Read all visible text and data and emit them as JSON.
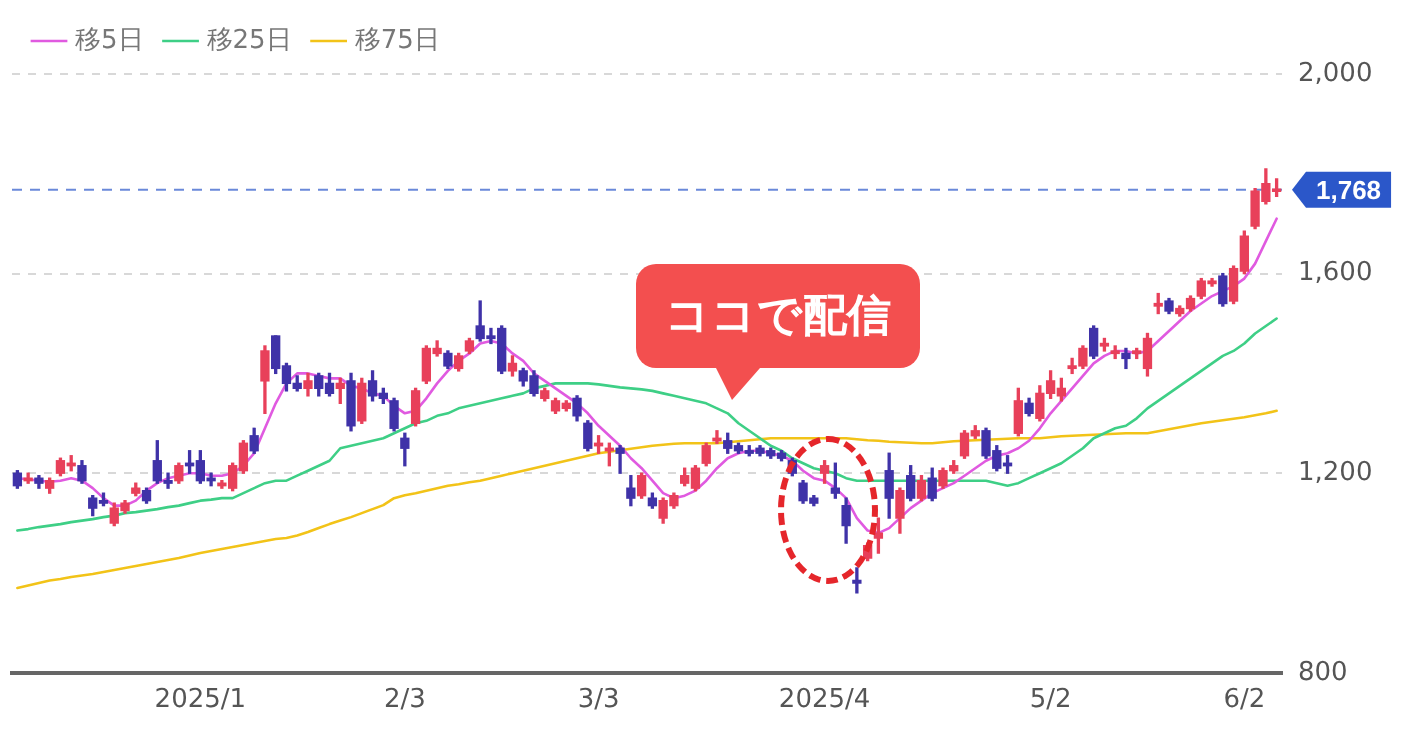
{
  "chart_data": {
    "type": "candlestick",
    "categories": [
      null,
      null,
      null,
      null,
      null,
      null,
      null,
      null,
      null,
      null,
      null,
      null,
      null,
      null,
      null,
      null,
      null,
      "2025/1",
      null,
      null,
      null,
      null,
      null,
      null,
      null,
      null,
      null,
      null,
      null,
      null,
      null,
      null,
      null,
      null,
      null,
      null,
      "2/3",
      null,
      null,
      null,
      null,
      null,
      null,
      null,
      null,
      null,
      null,
      null,
      null,
      null,
      null,
      null,
      null,
      null,
      "3/3",
      null,
      null,
      null,
      null,
      null,
      null,
      null,
      null,
      null,
      null,
      null,
      null,
      null,
      null,
      null,
      null,
      null,
      null,
      null,
      null,
      "2025/4",
      null,
      null,
      null,
      null,
      null,
      null,
      null,
      null,
      null,
      null,
      null,
      null,
      null,
      null,
      null,
      null,
      null,
      null,
      null,
      null,
      "5/2",
      null,
      null,
      null,
      null,
      null,
      null,
      null,
      null,
      null,
      null,
      null,
      null,
      null,
      null,
      null,
      null,
      null,
      "6/2",
      null,
      null,
      null
    ],
    "ohlc": [
      [
        1200,
        1205,
        1170,
        1175
      ],
      [
        1185,
        1200,
        1180,
        1190
      ],
      [
        1190,
        1195,
        1170,
        1180
      ],
      [
        1170,
        1190,
        1160,
        1185
      ],
      [
        1200,
        1230,
        1195,
        1225
      ],
      [
        1215,
        1235,
        1205,
        1220
      ],
      [
        1215,
        1225,
        1180,
        1185
      ],
      [
        1150,
        1155,
        1115,
        1130
      ],
      [
        1145,
        1160,
        1135,
        1140
      ],
      [
        1100,
        1140,
        1095,
        1130
      ],
      [
        1125,
        1145,
        1120,
        1140
      ],
      [
        1160,
        1180,
        1155,
        1170
      ],
      [
        1165,
        1170,
        1140,
        1145
      ],
      [
        1225,
        1265,
        1180,
        1185
      ],
      [
        1185,
        1200,
        1170,
        1180
      ],
      [
        1185,
        1220,
        1180,
        1215
      ],
      [
        1220,
        1245,
        1200,
        1215
      ],
      [
        1225,
        1245,
        1180,
        1185
      ],
      [
        1190,
        1200,
        1175,
        1185
      ],
      [
        1175,
        1185,
        1170,
        1180
      ],
      [
        1170,
        1220,
        1165,
        1215
      ],
      [
        1205,
        1265,
        1200,
        1260
      ],
      [
        1275,
        1290,
        1240,
        1245
      ],
      [
        1385,
        1455,
        1320,
        1445
      ],
      [
        1475,
        1475,
        1400,
        1410
      ],
      [
        1415,
        1420,
        1365,
        1380
      ],
      [
        1380,
        1395,
        1365,
        1370
      ],
      [
        1370,
        1400,
        1355,
        1385
      ],
      [
        1395,
        1400,
        1355,
        1370
      ],
      [
        1380,
        1400,
        1355,
        1360
      ],
      [
        1370,
        1390,
        1340,
        1380
      ],
      [
        1385,
        1400,
        1285,
        1295
      ],
      [
        1305,
        1390,
        1300,
        1380
      ],
      [
        1385,
        1405,
        1345,
        1355
      ],
      [
        1360,
        1370,
        1340,
        1350
      ],
      [
        1345,
        1350,
        1285,
        1290
      ],
      [
        1270,
        1280,
        1215,
        1250
      ],
      [
        1300,
        1370,
        1295,
        1365
      ],
      [
        1385,
        1455,
        1380,
        1450
      ],
      [
        1440,
        1465,
        1435,
        1450
      ],
      [
        1440,
        1445,
        1410,
        1415
      ],
      [
        1410,
        1440,
        1405,
        1435
      ],
      [
        1445,
        1470,
        1440,
        1465
      ],
      [
        1495,
        1545,
        1465,
        1470
      ],
      [
        1475,
        1490,
        1460,
        1470
      ],
      [
        1490,
        1495,
        1400,
        1405
      ],
      [
        1405,
        1435,
        1395,
        1420
      ],
      [
        1405,
        1410,
        1375,
        1385
      ],
      [
        1395,
        1405,
        1355,
        1360
      ],
      [
        1350,
        1370,
        1345,
        1365
      ],
      [
        1325,
        1350,
        1320,
        1345
      ],
      [
        1330,
        1345,
        1325,
        1340
      ],
      [
        1350,
        1355,
        1305,
        1315
      ],
      [
        1300,
        1305,
        1245,
        1250
      ],
      [
        1255,
        1275,
        1240,
        1260
      ],
      [
        1245,
        1260,
        1215,
        1250
      ],
      [
        1250,
        1255,
        1200,
        1240
      ],
      [
        1170,
        1195,
        1135,
        1150
      ],
      [
        1155,
        1200,
        1150,
        1195
      ],
      [
        1150,
        1160,
        1130,
        1135
      ],
      [
        1110,
        1150,
        1100,
        1145
      ],
      [
        1135,
        1160,
        1130,
        1155
      ],
      [
        1180,
        1210,
        1175,
        1195
      ],
      [
        1170,
        1215,
        1165,
        1210
      ],
      [
        1220,
        1260,
        1215,
        1255
      ],
      [
        1265,
        1285,
        1260,
        1270
      ],
      [
        1265,
        1280,
        1240,
        1250
      ],
      [
        1255,
        1260,
        1240,
        1245
      ],
      [
        1245,
        1255,
        1235,
        1240
      ],
      [
        1250,
        1255,
        1235,
        1240
      ],
      [
        1245,
        1250,
        1230,
        1235
      ],
      [
        1240,
        1245,
        1225,
        1230
      ],
      [
        1225,
        1230,
        1195,
        1200
      ],
      [
        1180,
        1185,
        1140,
        1145
      ],
      [
        1150,
        1155,
        1135,
        1140
      ],
      [
        1200,
        1225,
        1180,
        1215
      ],
      [
        1170,
        1220,
        1150,
        1160
      ],
      [
        1135,
        1150,
        1060,
        1095
      ],
      [
        985,
        1010,
        960,
        980
      ],
      [
        1030,
        1060,
        1025,
        1055
      ],
      [
        1070,
        1110,
        1040,
        1080
      ],
      [
        1205,
        1240,
        1110,
        1150
      ],
      [
        1110,
        1170,
        1080,
        1165
      ],
      [
        1195,
        1215,
        1145,
        1150
      ],
      [
        1150,
        1195,
        1145,
        1185
      ],
      [
        1190,
        1210,
        1145,
        1150
      ],
      [
        1175,
        1210,
        1170,
        1205
      ],
      [
        1205,
        1225,
        1200,
        1215
      ],
      [
        1235,
        1285,
        1230,
        1280
      ],
      [
        1275,
        1295,
        1270,
        1285
      ],
      [
        1285,
        1290,
        1230,
        1235
      ],
      [
        1245,
        1255,
        1205,
        1210
      ],
      [
        1220,
        1235,
        1200,
        1215
      ],
      [
        1280,
        1370,
        1275,
        1345
      ],
      [
        1340,
        1350,
        1315,
        1320
      ],
      [
        1310,
        1375,
        1305,
        1360
      ],
      [
        1360,
        1405,
        1350,
        1385
      ],
      [
        1355,
        1390,
        1345,
        1370
      ],
      [
        1410,
        1430,
        1400,
        1415
      ],
      [
        1415,
        1455,
        1410,
        1450
      ],
      [
        1490,
        1495,
        1430,
        1435
      ],
      [
        1455,
        1470,
        1445,
        1460
      ],
      [
        1440,
        1455,
        1430,
        1445
      ],
      [
        1440,
        1450,
        1410,
        1430
      ],
      [
        1440,
        1450,
        1430,
        1445
      ],
      [
        1410,
        1480,
        1395,
        1470
      ],
      [
        1535,
        1560,
        1520,
        1540
      ],
      [
        1545,
        1550,
        1520,
        1525
      ],
      [
        1520,
        1535,
        1515,
        1530
      ],
      [
        1530,
        1555,
        1525,
        1550
      ],
      [
        1555,
        1590,
        1550,
        1585
      ],
      [
        1580,
        1590,
        1575,
        1585
      ],
      [
        1595,
        1600,
        1535,
        1540
      ],
      [
        1545,
        1615,
        1540,
        1610
      ],
      [
        1605,
        1685,
        1600,
        1675
      ],
      [
        1695,
        1770,
        1690,
        1765
      ],
      [
        1745,
        1810,
        1740,
        1780
      ],
      [
        1765,
        1790,
        1755,
        1768
      ]
    ],
    "series": [
      {
        "type": "line",
        "name": "移5日",
        "color": "#e05ae0",
        "values": [
          1190,
          1188,
          1185,
          1183,
          1185,
          1190,
          1185,
          1170,
          1150,
          1135,
          1135,
          1145,
          1165,
          1180,
          1190,
          1195,
          1200,
          1200,
          1195,
          1195,
          1200,
          1215,
          1240,
          1290,
          1340,
          1380,
          1400,
          1400,
          1395,
          1390,
          1390,
          1375,
          1370,
          1360,
          1355,
          1335,
          1320,
          1325,
          1350,
          1380,
          1405,
          1425,
          1440,
          1460,
          1465,
          1460,
          1440,
          1425,
          1400,
          1385,
          1370,
          1355,
          1340,
          1320,
          1295,
          1275,
          1255,
          1230,
          1210,
          1185,
          1160,
          1150,
          1155,
          1165,
          1185,
          1210,
          1230,
          1240,
          1245,
          1245,
          1240,
          1235,
          1225,
          1205,
          1190,
          1185,
          1170,
          1150,
          1110,
          1085,
          1080,
          1090,
          1110,
          1130,
          1145,
          1160,
          1170,
          1180,
          1195,
          1210,
          1225,
          1235,
          1240,
          1250,
          1265,
          1290,
          1320,
          1345,
          1370,
          1395,
          1420,
          1435,
          1445,
          1445,
          1440,
          1445,
          1465,
          1485,
          1505,
          1525,
          1540,
          1555,
          1565,
          1575,
          1590,
          1620,
          1665,
          1710
        ]
      },
      {
        "type": "line",
        "name": "移25日",
        "color": "#3ecf86",
        "values": [
          1085,
          1088,
          1092,
          1095,
          1098,
          1102,
          1105,
          1108,
          1112,
          1115,
          1120,
          1122,
          1125,
          1128,
          1132,
          1135,
          1140,
          1145,
          1147,
          1150,
          1150,
          1160,
          1170,
          1180,
          1185,
          1185,
          1195,
          1205,
          1215,
          1225,
          1250,
          1255,
          1260,
          1265,
          1270,
          1280,
          1290,
          1300,
          1305,
          1315,
          1320,
          1330,
          1335,
          1340,
          1345,
          1350,
          1355,
          1360,
          1370,
          1375,
          1380,
          1380,
          1380,
          1380,
          1378,
          1375,
          1372,
          1370,
          1368,
          1365,
          1360,
          1355,
          1350,
          1345,
          1340,
          1330,
          1320,
          1300,
          1285,
          1270,
          1255,
          1245,
          1230,
          1220,
          1210,
          1205,
          1200,
          1190,
          1185,
          1185,
          1185,
          1185,
          1185,
          1185,
          1185,
          1185,
          1185,
          1185,
          1185,
          1185,
          1185,
          1180,
          1175,
          1180,
          1190,
          1200,
          1210,
          1220,
          1235,
          1250,
          1270,
          1280,
          1290,
          1295,
          1310,
          1330,
          1345,
          1360,
          1375,
          1390,
          1405,
          1420,
          1435,
          1445,
          1460,
          1480,
          1495,
          1510
        ]
      },
      {
        "type": "line",
        "name": "移75日",
        "color": "#f2c318",
        "values": [
          970,
          975,
          980,
          985,
          988,
          992,
          995,
          998,
          1002,
          1006,
          1010,
          1014,
          1018,
          1022,
          1026,
          1030,
          1035,
          1040,
          1044,
          1048,
          1052,
          1056,
          1060,
          1064,
          1068,
          1070,
          1075,
          1082,
          1090,
          1098,
          1105,
          1112,
          1120,
          1128,
          1136,
          1150,
          1156,
          1160,
          1165,
          1170,
          1175,
          1178,
          1182,
          1185,
          1190,
          1195,
          1200,
          1205,
          1210,
          1215,
          1220,
          1225,
          1230,
          1235,
          1240,
          1243,
          1246,
          1249,
          1252,
          1255,
          1257,
          1259,
          1260,
          1260,
          1260,
          1260,
          1262,
          1264,
          1266,
          1268,
          1270,
          1270,
          1270,
          1270,
          1270,
          1270,
          1270,
          1270,
          1268,
          1266,
          1265,
          1263,
          1262,
          1261,
          1260,
          1260,
          1262,
          1264,
          1265,
          1266,
          1267,
          1268,
          1269,
          1270,
          1270,
          1270,
          1272,
          1274,
          1275,
          1276,
          1277,
          1278,
          1279,
          1280,
          1280,
          1280,
          1284,
          1288,
          1292,
          1296,
          1300,
          1303,
          1306,
          1309,
          1312,
          1316,
          1320,
          1325
        ]
      }
    ],
    "ylim": [
      800,
      2000
    ],
    "yticks": [
      {
        "value": 800,
        "label": "800"
      },
      {
        "value": 1200,
        "label": "1,200"
      },
      {
        "value": 1600,
        "label": "1,600"
      },
      {
        "value": 2000,
        "label": "2,000"
      }
    ],
    "ref_lines": [
      {
        "axis": "y",
        "value": 1768,
        "label": "1,768",
        "color": "#2b57c9",
        "line_style": "dashed"
      }
    ],
    "annotations": [
      "ココで配信"
    ],
    "grid": "y",
    "legend": "top left"
  }
}
